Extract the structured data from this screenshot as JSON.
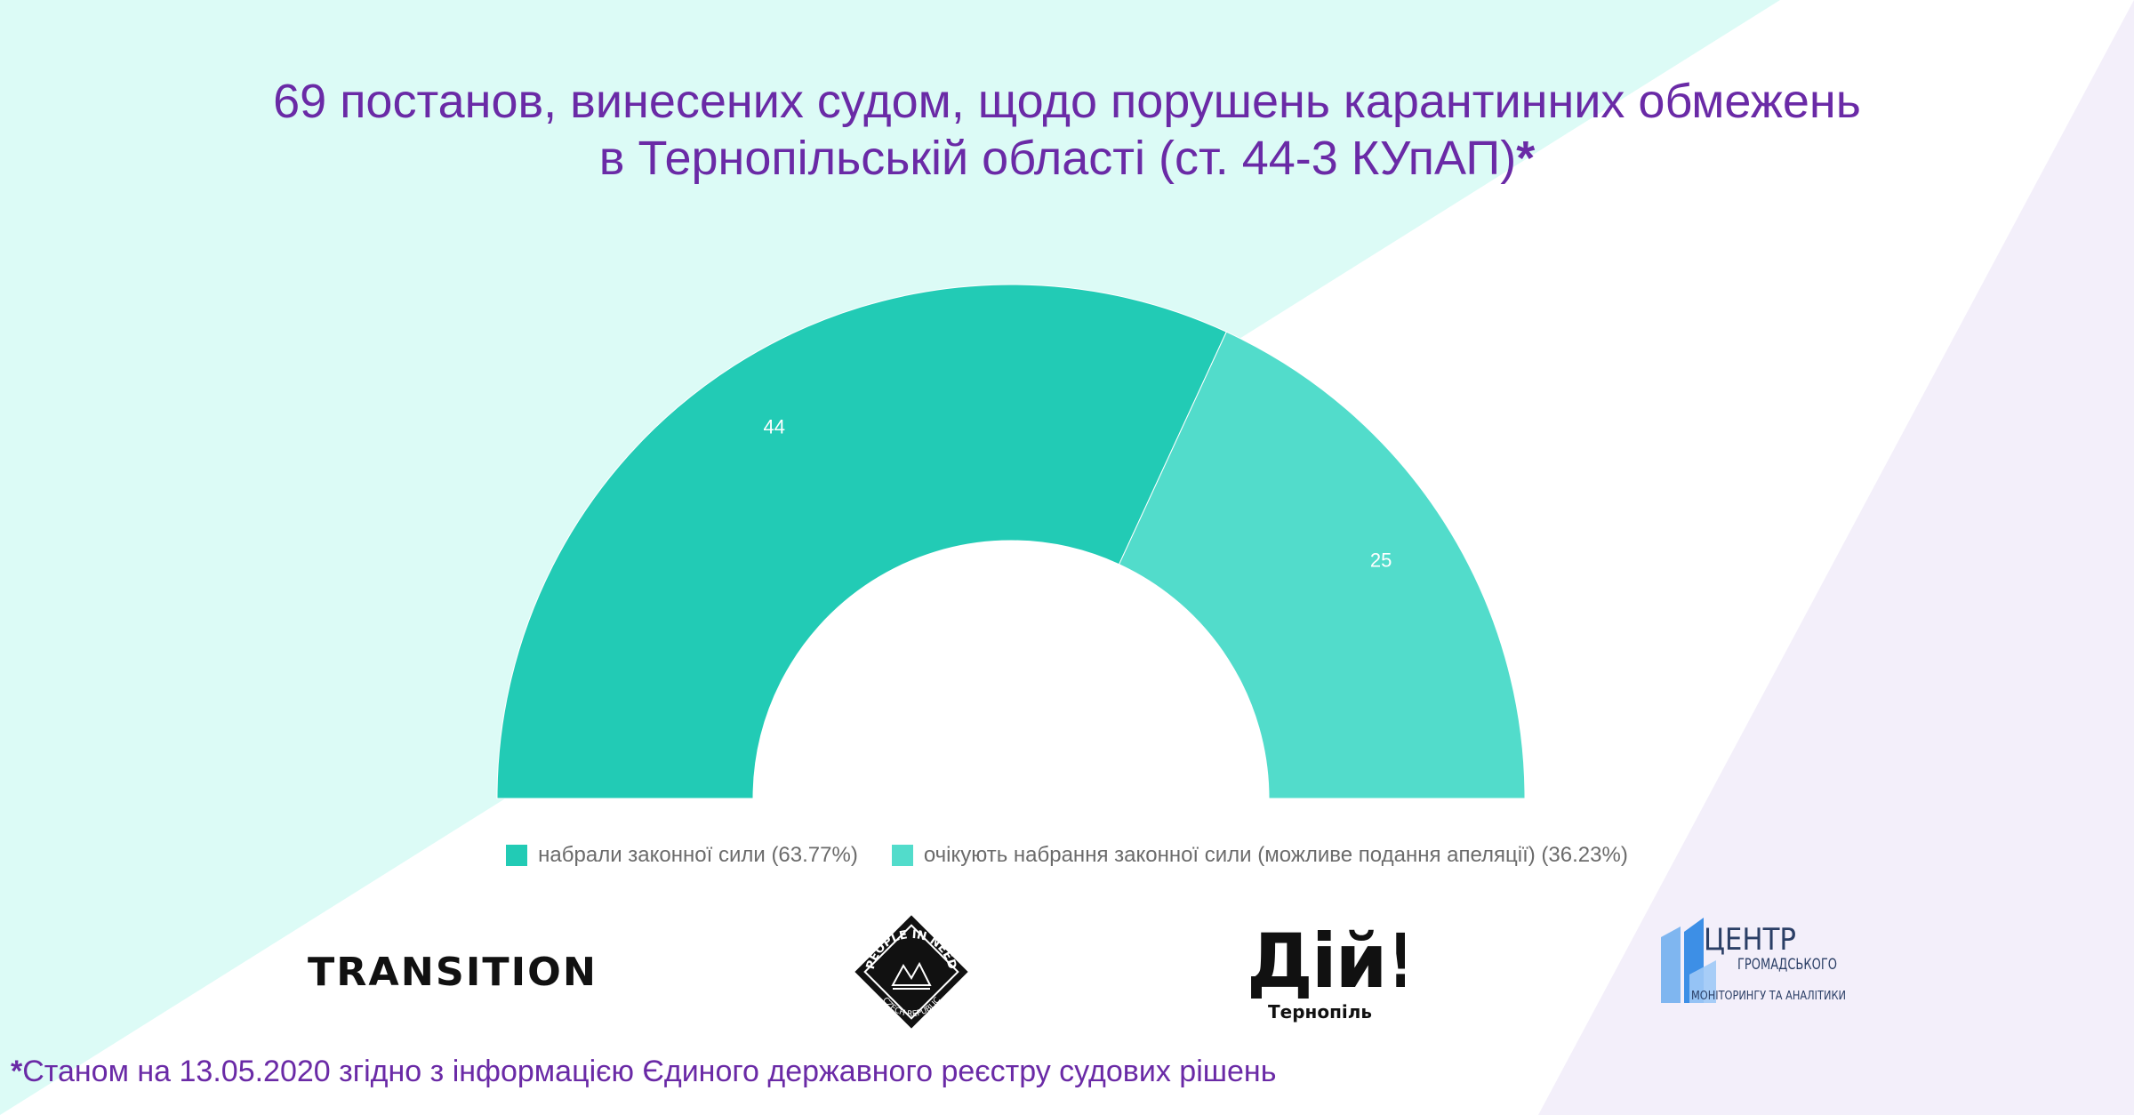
{
  "title": {
    "line1": "69 постанов, винесених судом, щодо порушень карантинних обмежень",
    "line2": "в Тернопільській області (ст. 44-3 КУпАП)",
    "asterisk": "*"
  },
  "chart_data": {
    "type": "pie",
    "variant": "half-donut",
    "total": 69,
    "slices": [
      {
        "label": "набрали законної сили (63.77%)",
        "value": 44,
        "percent": 63.77,
        "color": "#22cbb5"
      },
      {
        "label": "очікують набрання законної сили (можливе подання апеляції) (36.23%)",
        "value": 25,
        "percent": 36.23,
        "color": "#52dccb"
      }
    ],
    "data_labels": [
      "44",
      "25"
    ],
    "legend_position": "bottom"
  },
  "logos": {
    "transition": "TRANSITION",
    "pin": {
      "top": "PEOPLE IN NEED",
      "bottom": "CZECH REPUBLIC"
    },
    "diy": {
      "main": "Дій!",
      "city": "Тернопіль"
    },
    "centr": {
      "line1": "ЦЕНТР",
      "line2": "ГРОМАДСЬКОГО",
      "line3": "МОНІТОРИНГУ ТА АНАЛІТИКИ"
    }
  },
  "footnote": {
    "asterisk": "*",
    "text": "Станом на 13.05.2020 згідно з інформацією Єдиного державного реєстру судових рішень"
  },
  "colors": {
    "title": "#6a2aa6",
    "bg_mint": "#dcfbf6",
    "bg_lavender": "#f3effa",
    "legend_text": "#6b6b6b"
  }
}
